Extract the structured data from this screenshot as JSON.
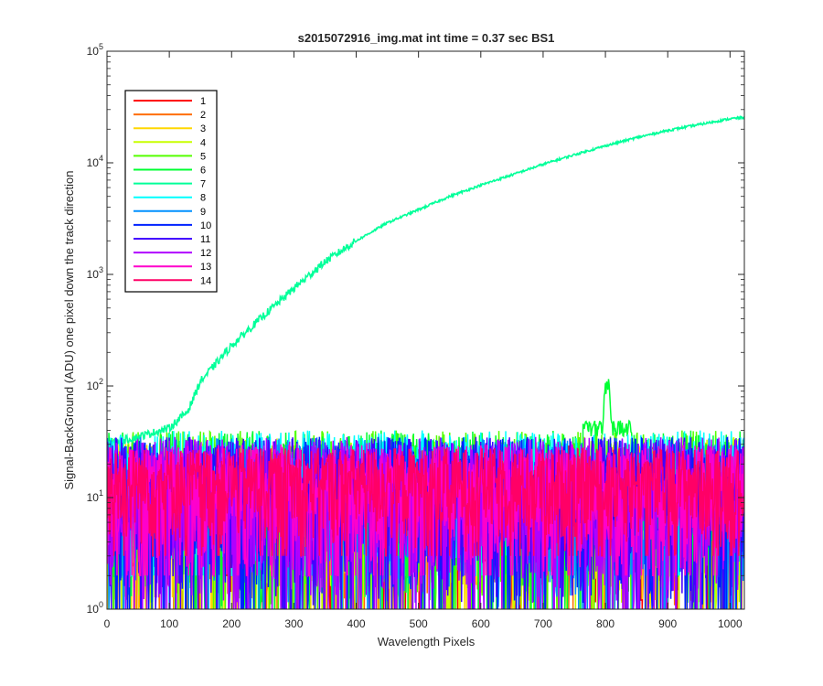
{
  "chart_data": {
    "type": "line",
    "title": "s2015072916_img.mat int time = 0.37 sec   BS1",
    "xlabel": "Wavelength Pixels",
    "ylabel": "Signal-BackGround (ADU) one pixel down the track direction",
    "xlim": [
      0,
      1023
    ],
    "ylim": [
      1,
      100000
    ],
    "yscale": "log",
    "grid": false,
    "legend_position": "top-left",
    "x_ticks": [
      "0",
      "100",
      "200",
      "300",
      "400",
      "500",
      "600",
      "700",
      "800",
      "900",
      "1000"
    ],
    "y_ticks": [
      {
        "base": "10",
        "exp": "0"
      },
      {
        "base": "10",
        "exp": "1"
      },
      {
        "base": "10",
        "exp": "2"
      },
      {
        "base": "10",
        "exp": "3"
      },
      {
        "base": "10",
        "exp": "4"
      },
      {
        "base": "10",
        "exp": "5"
      }
    ],
    "series": [
      {
        "name": "1",
        "color": "#ff0000",
        "noise_level": [
          1,
          30
        ]
      },
      {
        "name": "2",
        "color": "#ff6e00",
        "noise_level": [
          1,
          30
        ]
      },
      {
        "name": "3",
        "color": "#ffd700",
        "noise_level": [
          1,
          32
        ]
      },
      {
        "name": "4",
        "color": "#c8ff00",
        "noise_level": [
          1,
          35
        ]
      },
      {
        "name": "5",
        "color": "#55ff00",
        "noise_level": [
          1,
          40
        ]
      },
      {
        "name": "6",
        "color": "#00ff33",
        "noise_level": [
          1,
          40
        ],
        "peak": {
          "x": 803,
          "y": 125
        }
      },
      {
        "name": "7",
        "color": "#00ff99",
        "curve": [
          [
            0,
            30
          ],
          [
            50,
            35
          ],
          [
            100,
            42
          ],
          [
            130,
            60
          ],
          [
            150,
            110
          ],
          [
            200,
            230
          ],
          [
            250,
            420
          ],
          [
            300,
            750
          ],
          [
            350,
            1300
          ],
          [
            400,
            2000
          ],
          [
            450,
            2900
          ],
          [
            500,
            3800
          ],
          [
            550,
            5000
          ],
          [
            600,
            6300
          ],
          [
            650,
            7800
          ],
          [
            700,
            9700
          ],
          [
            750,
            11800
          ],
          [
            800,
            14200
          ],
          [
            850,
            16800
          ],
          [
            900,
            19500
          ],
          [
            950,
            22000
          ],
          [
            1000,
            24800
          ],
          [
            1023,
            25500
          ]
        ]
      },
      {
        "name": "8",
        "color": "#00ffff",
        "noise_level": [
          2,
          40
        ]
      },
      {
        "name": "9",
        "color": "#0090ff",
        "noise_level": [
          1,
          35
        ]
      },
      {
        "name": "10",
        "color": "#0022ff",
        "noise_level": [
          1,
          35
        ]
      },
      {
        "name": "11",
        "color": "#4400ff",
        "noise_level": [
          1,
          35
        ]
      },
      {
        "name": "12",
        "color": "#b000ff",
        "noise_level": [
          1,
          35
        ]
      },
      {
        "name": "13",
        "color": "#ff00cc",
        "noise_level": [
          2,
          30
        ]
      },
      {
        "name": "14",
        "color": "#ff0066",
        "noise_level": [
          3,
          28
        ]
      }
    ]
  }
}
